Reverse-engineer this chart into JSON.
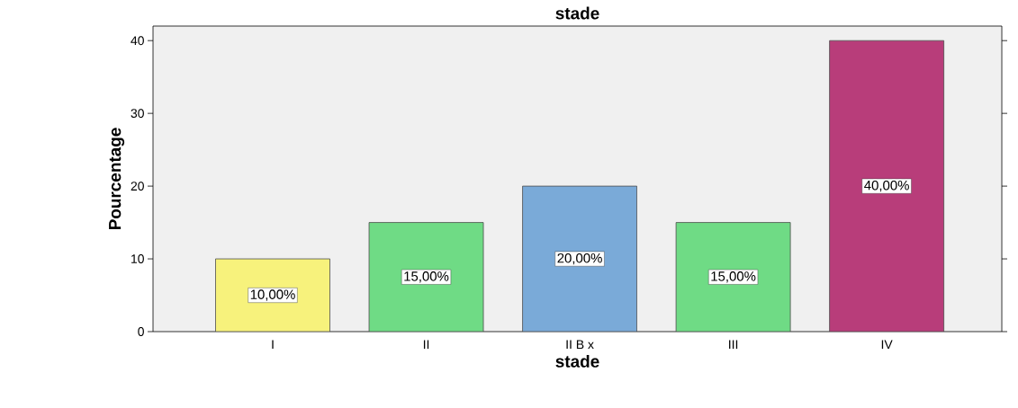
{
  "chart_data": {
    "type": "bar",
    "title": "stade",
    "xlabel": "stade",
    "ylabel": "Pourcentage",
    "categories": [
      "I",
      "II",
      "II B x",
      "III",
      "IV"
    ],
    "values": [
      10,
      15,
      20,
      15,
      40
    ],
    "colors": [
      "#f7f27c",
      "#6fdb85",
      "#7aaad8",
      "#6fdb85",
      "#b83d7a"
    ],
    "value_labels": [
      "10,00%",
      "15,00%",
      "20,00%",
      "15,00%",
      "40,00%"
    ],
    "ylim": [
      0,
      42
    ],
    "yticks": [
      0,
      10,
      20,
      30,
      40
    ]
  }
}
